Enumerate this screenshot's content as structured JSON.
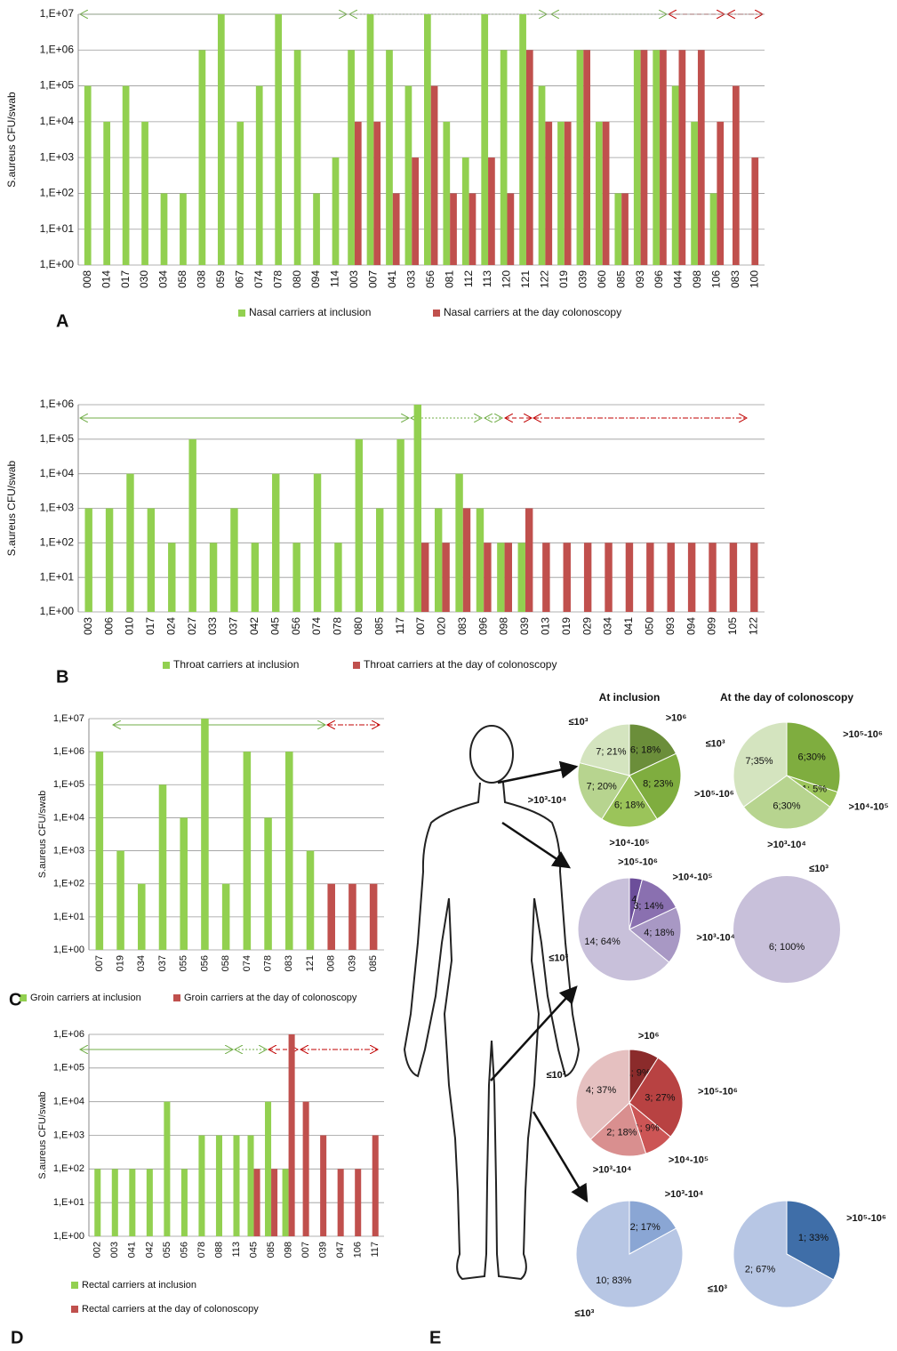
{
  "chart_data": [
    {
      "type": "bar",
      "panel": "A",
      "y_label": "S.aureus CFU/swab",
      "log": true,
      "grid": true,
      "legend": "bottom",
      "categories": [
        "008",
        "014",
        "017",
        "030",
        "034",
        "058",
        "038",
        "059",
        "067",
        "074",
        "078",
        "080",
        "094",
        "114",
        "003",
        "007",
        "041",
        "033",
        "056",
        "081",
        "112",
        "113",
        "120",
        "121",
        "122",
        "019",
        "039",
        "060",
        "085",
        "093",
        "096",
        "044",
        "098",
        "106",
        "083",
        "100"
      ],
      "series": [
        {
          "name": "Nasal carriers at inclusion",
          "color": "#92d050",
          "values": [
            100000,
            10000,
            100000,
            10000,
            100,
            100,
            1000000,
            10000000,
            10000,
            100000,
            10000000,
            1000000,
            100,
            1000,
            1000000,
            10000000,
            1000000,
            100000,
            10000000,
            10000,
            1000,
            10000000,
            1000000,
            10000000,
            100000,
            10000,
            1000000,
            10000,
            100,
            1000000,
            1000000,
            100000,
            10000,
            100,
            null,
            null
          ]
        },
        {
          "name": "Nasal carriers at the day colonoscopy",
          "color": "#c0504d",
          "values": [
            null,
            null,
            null,
            null,
            null,
            null,
            null,
            null,
            null,
            null,
            null,
            null,
            null,
            null,
            10000,
            10000,
            100,
            1000,
            100000,
            100,
            100,
            1000,
            100,
            1000000,
            10000,
            10000,
            1000000,
            10000,
            100,
            1000000,
            1000000,
            1000000,
            1000000,
            10000,
            100000,
            1000
          ]
        }
      ],
      "ylim": [
        1,
        10000000
      ],
      "yticks": [
        {
          "value": 1,
          "label": "1,E+00"
        },
        {
          "value": 10,
          "label": "1,E+01"
        },
        {
          "value": 100,
          "label": "1,E+02"
        },
        {
          "value": 1000,
          "label": "1,E+03"
        },
        {
          "value": 10000,
          "label": "1,E+04"
        },
        {
          "value": 100000,
          "label": "1,E+05"
        },
        {
          "value": 1000000,
          "label": "1,E+06"
        },
        {
          "value": 10000000,
          "label": "1,E+07"
        }
      ]
    },
    {
      "type": "bar",
      "panel": "B",
      "y_label": "S.aureus CFU/swab",
      "log": true,
      "grid": true,
      "legend": "bottom",
      "categories": [
        "003",
        "006",
        "010",
        "017",
        "024",
        "027",
        "033",
        "037",
        "042",
        "045",
        "056",
        "074",
        "078",
        "080",
        "085",
        "117",
        "007",
        "020",
        "083",
        "096",
        "098",
        "039",
        "013",
        "019",
        "029",
        "034",
        "041",
        "050",
        "093",
        "094",
        "099",
        "105",
        "122"
      ],
      "series": [
        {
          "name": "Throat carriers at inclusion",
          "color": "#92d050",
          "values": [
            1000,
            1000,
            10000,
            1000,
            100,
            100000,
            100,
            1000,
            100,
            10000,
            100,
            10000,
            100,
            100000,
            1000,
            100000,
            1000000,
            1000,
            10000,
            1000,
            100,
            100,
            null,
            null,
            null,
            null,
            null,
            null,
            null,
            null,
            null,
            null,
            null
          ]
        },
        {
          "name": "Throat carriers at the day of colonoscopy",
          "color": "#c0504d",
          "values": [
            null,
            null,
            null,
            null,
            null,
            null,
            null,
            null,
            null,
            null,
            null,
            null,
            null,
            null,
            null,
            null,
            100,
            100,
            1000,
            100,
            100,
            1000,
            100,
            100,
            100,
            100,
            100,
            100,
            100,
            100,
            100,
            100,
            100
          ]
        }
      ],
      "ylim": [
        1,
        1000000
      ],
      "yticks": [
        {
          "value": 1,
          "label": "1,E+00"
        },
        {
          "value": 10,
          "label": "1,E+01"
        },
        {
          "value": 100,
          "label": "1,E+02"
        },
        {
          "value": 1000,
          "label": "1,E+03"
        },
        {
          "value": 10000,
          "label": "1,E+04"
        },
        {
          "value": 100000,
          "label": "1,E+05"
        },
        {
          "value": 1000000,
          "label": "1,E+06"
        }
      ]
    },
    {
      "type": "bar",
      "panel": "C",
      "y_label": "S.aureus CFU/swab",
      "log": true,
      "grid": true,
      "legend": "bottom",
      "categories": [
        "007",
        "019",
        "034",
        "037",
        "055",
        "056",
        "058",
        "074",
        "078",
        "083",
        "121",
        "008",
        "039",
        "085"
      ],
      "series": [
        {
          "name": "Groin carriers at inclusion",
          "color": "#92d050",
          "values": [
            1000000,
            1000,
            100,
            100000,
            10000,
            10000000,
            100,
            1000000,
            10000,
            1000000,
            1000,
            null,
            null,
            null
          ]
        },
        {
          "name": "Groin carriers at the day of colonoscopy",
          "color": "#c0504d",
          "values": [
            null,
            null,
            null,
            null,
            null,
            null,
            null,
            null,
            null,
            null,
            null,
            100,
            100,
            100
          ]
        }
      ],
      "ylim": [
        1,
        10000000
      ],
      "yticks": [
        {
          "value": 1,
          "label": "1,E+00"
        },
        {
          "value": 10,
          "label": "1,E+01"
        },
        {
          "value": 100,
          "label": "1,E+02"
        },
        {
          "value": 1000,
          "label": "1,E+03"
        },
        {
          "value": 10000,
          "label": "1,E+04"
        },
        {
          "value": 100000,
          "label": "1,E+05"
        },
        {
          "value": 1000000,
          "label": "1,E+06"
        },
        {
          "value": 10000000,
          "label": "1,E+07"
        }
      ]
    },
    {
      "type": "bar",
      "panel": "D",
      "y_label": "S.aureus CFU/swab",
      "log": true,
      "grid": true,
      "legend": "bottom",
      "categories": [
        "002",
        "003",
        "041",
        "042",
        "055",
        "056",
        "078",
        "088",
        "113",
        "045",
        "085",
        "098",
        "007",
        "039",
        "047",
        "106",
        "117"
      ],
      "series": [
        {
          "name": "Rectal carriers at inclusion",
          "color": "#92d050",
          "values": [
            100,
            100,
            100,
            100,
            10000,
            100,
            1000,
            1000,
            1000,
            1000,
            10000,
            100,
            null,
            null,
            null,
            null,
            null
          ]
        },
        {
          "name": "Rectal carriers at the day of colonoscopy",
          "color": "#c0504d",
          "values": [
            null,
            null,
            null,
            null,
            null,
            null,
            null,
            null,
            null,
            100,
            100,
            1000000,
            10000,
            1000,
            100,
            100,
            1000
          ]
        }
      ],
      "ylim": [
        1,
        1000000
      ],
      "yticks": [
        {
          "value": 1,
          "label": "1,E+00"
        },
        {
          "value": 10,
          "label": "1,E+01"
        },
        {
          "value": 100,
          "label": "1,E+02"
        },
        {
          "value": 1000,
          "label": "1,E+03"
        },
        {
          "value": 10000,
          "label": "1,E+04"
        },
        {
          "value": 100000,
          "label": "1,E+05"
        },
        {
          "value": 1000000,
          "label": "1,E+06"
        }
      ]
    },
    {
      "type": "pie",
      "panel": "E",
      "title": "At inclusion",
      "categories": [
        ">10⁶",
        ">10⁵-10⁶",
        ">10⁴-10⁵",
        ">10³-10⁴",
        "≤10³"
      ],
      "values": [
        18,
        23,
        18,
        20,
        21
      ],
      "value_labels": [
        "6; 18%",
        "8; 23%",
        "6; 18%",
        "7; 20%",
        "7; 21%"
      ],
      "colors": [
        "#6b8e3a",
        "#7fad3f",
        "#9bc45a",
        "#b7d48f",
        "#d4e4bf"
      ]
    },
    {
      "type": "pie",
      "title": "At the day of colonoscopy",
      "categories": [
        ">10⁵-10⁶",
        ">10⁴-10⁵",
        ">10³-10⁴",
        "≤10³"
      ],
      "values": [
        30,
        5,
        30,
        35
      ],
      "value_labels": [
        "6;30%",
        "1; 5%",
        "6;30%",
        "7;35%"
      ],
      "colors": [
        "#7fad3f",
        "#9bc45a",
        "#b7d48f",
        "#d4e4bf"
      ]
    },
    {
      "type": "pie",
      "categories": [
        ">10⁵-10⁶",
        ">10⁴-10⁵",
        ">10³-10⁴",
        "≤10³"
      ],
      "values": [
        4,
        14,
        18,
        64
      ],
      "value_labels": [
        "1; 4%",
        "3; 14%",
        "4; 18%",
        "14; 64%"
      ],
      "colors": [
        "#6c4e9a",
        "#8a70b0",
        "#a898c4",
        "#c8c0da"
      ]
    },
    {
      "type": "pie",
      "categories": [
        "≤10³"
      ],
      "values": [
        100
      ],
      "value_labels": [
        "6; 100%"
      ],
      "colors": [
        "#c8c0da"
      ]
    },
    {
      "type": "pie",
      "categories": [
        ">10⁶",
        ">10⁵-10⁶",
        ">10⁴-10⁵",
        ">10³-10⁴",
        "≤10³"
      ],
      "values": [
        9,
        27,
        9,
        18,
        37
      ],
      "value_labels": [
        "1; 9%",
        "3; 27%",
        "1; 9%",
        "2; 18%",
        "4; 37%"
      ],
      "colors": [
        "#8b2b2b",
        "#b84242",
        "#cc5555",
        "#d98f8f",
        "#e5c0c0"
      ]
    },
    {
      "type": "pie",
      "categories": [
        ">10³-10⁴",
        "≤10³"
      ],
      "values": [
        17,
        83
      ],
      "value_labels": [
        "2; 17%",
        "10; 83%"
      ],
      "colors": [
        "#8aa6d4",
        "#b7c6e4"
      ]
    },
    {
      "type": "pie",
      "categories": [
        ">10⁵-10⁶",
        "≤10³"
      ],
      "values": [
        33,
        67
      ],
      "value_labels": [
        "1; 33%",
        "2; 67%"
      ],
      "colors": [
        "#3f6ea8",
        "#b7c6e4"
      ]
    }
  ]
}
